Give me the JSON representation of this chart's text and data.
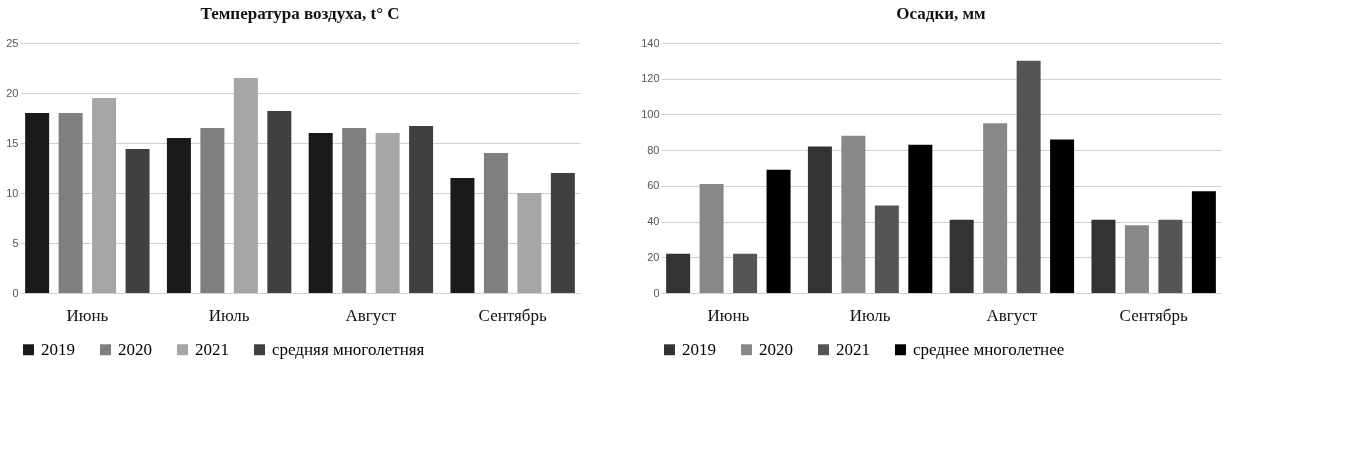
{
  "chart_data": [
    {
      "type": "bar",
      "title": "Температура воздуха, t° C",
      "categories": [
        "Июнь",
        "Июль",
        "Август",
        "Сентябрь"
      ],
      "ylim": [
        0,
        25
      ],
      "yticks": [
        0,
        5,
        10,
        15,
        20,
        25
      ],
      "grid": "y",
      "legend": "bottom",
      "series": [
        {
          "name": "2019",
          "color": "#1a1a1a",
          "values": [
            18,
            15.5,
            16,
            11.5
          ]
        },
        {
          "name": "2020",
          "color": "#7f7f7f",
          "values": [
            18,
            16.5,
            16.5,
            14
          ]
        },
        {
          "name": "2021",
          "color": "#a6a6a6",
          "values": [
            19.5,
            21.5,
            16,
            10
          ]
        },
        {
          "name": "средняя многолетняя",
          "color": "#404040",
          "values": [
            14.4,
            18.2,
            16.7,
            12
          ]
        }
      ]
    },
    {
      "type": "bar",
      "title": "Осадки, мм",
      "categories": [
        "Июнь",
        "Июль",
        "Август",
        "Сентябрь"
      ],
      "ylim": [
        0,
        140
      ],
      "yticks": [
        0,
        20,
        40,
        60,
        80,
        100,
        120,
        140
      ],
      "grid": "y",
      "legend": "bottom",
      "series": [
        {
          "name": "2019",
          "color": "#333333",
          "values": [
            22,
            82,
            41,
            41
          ]
        },
        {
          "name": "2020",
          "color": "#888888",
          "values": [
            61,
            88,
            95,
            38
          ]
        },
        {
          "name": "2021",
          "color": "#555555",
          "values": [
            22,
            49,
            130,
            41
          ]
        },
        {
          "name": "среднее многолетнее",
          "color": "#000000",
          "values": [
            69,
            83,
            86,
            57
          ]
        }
      ]
    }
  ]
}
